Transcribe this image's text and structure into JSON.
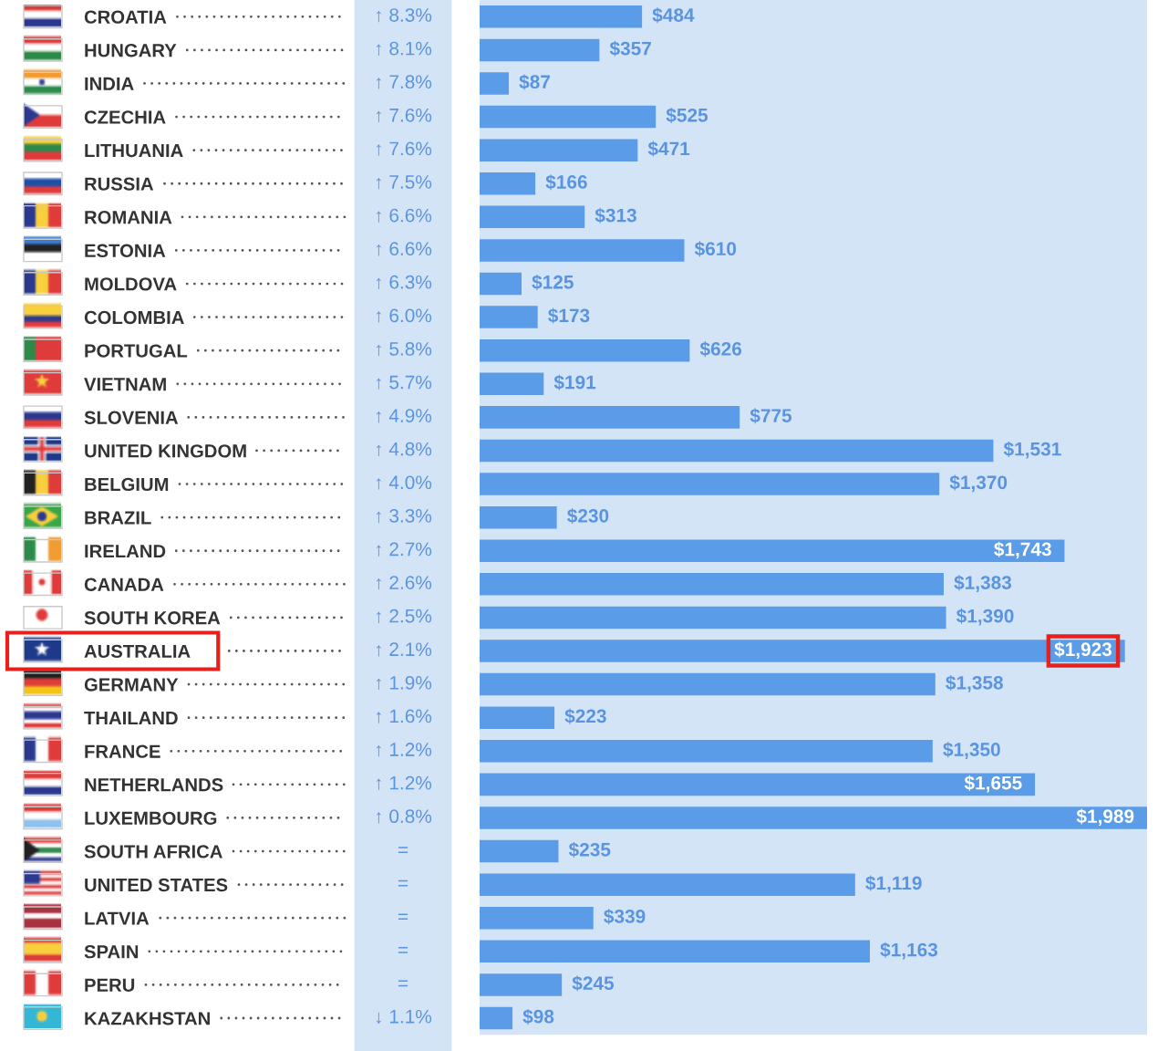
{
  "chart_data": {
    "type": "bar",
    "orientation": "horizontal",
    "categories": [
      "CROATIA",
      "HUNGARY",
      "INDIA",
      "CZECHIA",
      "LITHUANIA",
      "RUSSIA",
      "ROMANIA",
      "ESTONIA",
      "MOLDOVA",
      "COLOMBIA",
      "PORTUGAL",
      "VIETNAM",
      "SLOVENIA",
      "UNITED KINGDOM",
      "BELGIUM",
      "BRAZIL",
      "IRELAND",
      "CANADA",
      "SOUTH KOREA",
      "AUSTRALIA",
      "GERMANY",
      "THAILAND",
      "FRANCE",
      "NETHERLANDS",
      "LUXEMBOURG",
      "SOUTH AFRICA",
      "UNITED STATES",
      "LATVIA",
      "SPAIN",
      "PERU",
      "KAZAKHSTAN"
    ],
    "y2_categories": [
      "↑ 8.3%",
      "↑ 8.1%",
      "↑ 7.8%",
      "↑ 7.6%",
      "↑ 7.6%",
      "↑ 7.5%",
      "↑ 6.6%",
      "↑ 6.6%",
      "↑ 6.3%",
      "↑ 6.0%",
      "↑ 5.8%",
      "↑ 5.7%",
      "↑ 4.9%",
      "↑ 4.8%",
      "↑ 4.0%",
      "↑ 3.3%",
      "↑ 2.7%",
      "↑ 2.6%",
      "↑ 2.5%",
      "↑ 2.1%",
      "↑ 1.9%",
      "↑ 1.6%",
      "↑ 1.2%",
      "↑ 1.2%",
      "↑ 0.8%",
      "=",
      "=",
      "=",
      "=",
      "=",
      "↓ 1.1%"
    ],
    "values": [
      484,
      357,
      87,
      525,
      471,
      166,
      313,
      610,
      125,
      173,
      626,
      191,
      775,
      1531,
      1370,
      230,
      1743,
      1383,
      1390,
      1923,
      1358,
      223,
      1350,
      1655,
      1989,
      235,
      1119,
      339,
      1163,
      245,
      98
    ],
    "value_labels": [
      "$484",
      "$357",
      "$87",
      "$525",
      "$471",
      "$166",
      "$313",
      "$610",
      "$125",
      "$173",
      "$626",
      "$191",
      "$775",
      "$1,531",
      "$1,370",
      "$230",
      "$1,743",
      "$1,383",
      "$1,390",
      null,
      "$1,358",
      "$223",
      "$1,350",
      "$1,655",
      "$1,989",
      "$235",
      "$1,119",
      "$339",
      "$1,163",
      "$245",
      "$98"
    ],
    "annotations": [
      {
        "text": "$1,923",
        "x": 1923,
        "y": "AUSTRALIA"
      }
    ],
    "color": "#5b9ce8",
    "xlim": [
      0,
      1989
    ],
    "tick_labels": "y"
  }
}
